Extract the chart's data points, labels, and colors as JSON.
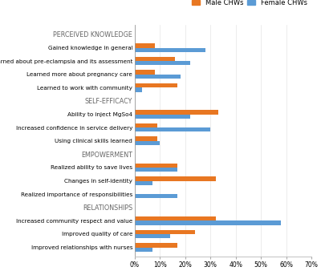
{
  "categories": [
    "PERCEIVED KNOWLEDGE",
    "Gained knowledge in general",
    "Learned about pre-eclampsia and its assessment",
    "Learned more about pregnancy care",
    "Learned to work with community",
    "SELF-EFFICACY",
    "Ability to inject MgSo4",
    "Increased confidence in service delivery",
    "Using clinical skills learned",
    "EMPOWERMENT",
    "Realized ability to save lives",
    "Changes in self-identity",
    "Realized importance of responsibilities",
    "RELATIONSHIPS",
    "Increased community respect and value",
    "Improved quality of care",
    "Improved relationships with nurses"
  ],
  "header_rows": [
    0,
    5,
    9,
    13
  ],
  "male_values": [
    0,
    8,
    16,
    8,
    17,
    0,
    33,
    9,
    9,
    0,
    17,
    32,
    0,
    0,
    32,
    24,
    17
  ],
  "female_values": [
    0,
    28,
    22,
    18,
    3,
    0,
    22,
    30,
    10,
    0,
    17,
    7,
    17,
    0,
    58,
    14,
    7
  ],
  "male_color": "#E87722",
  "female_color": "#5B9BD5",
  "legend_labels": [
    "Male CHWs",
    "Female CHWs"
  ],
  "xlim": [
    0,
    70
  ],
  "xtick_values": [
    0,
    10,
    20,
    30,
    40,
    50,
    60,
    70
  ],
  "xtick_labels": [
    "0%",
    "10%",
    "20%",
    "30%",
    "40%",
    "50%",
    "60%",
    "70%"
  ],
  "bar_height": 0.32,
  "figsize": [
    4.0,
    3.48
  ],
  "dpi": 100,
  "background_color": "#ffffff",
  "label_fontsize": 5.2,
  "tick_fontsize": 5.5,
  "header_fontsize": 5.8,
  "legend_fontsize": 6.0
}
